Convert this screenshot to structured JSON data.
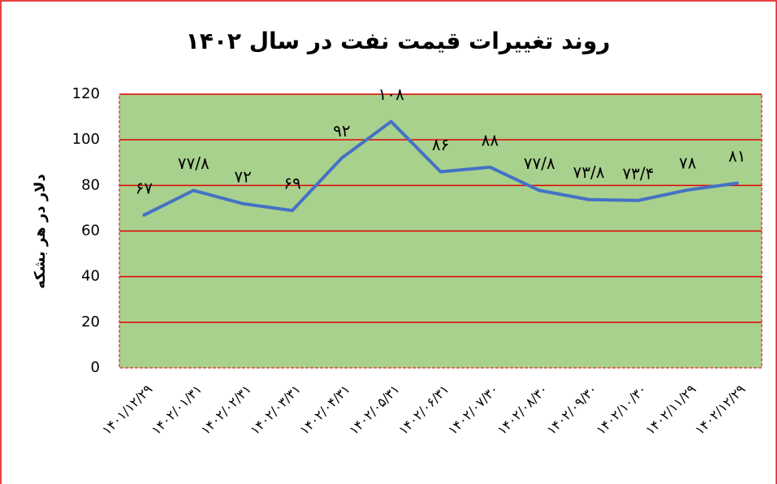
{
  "chart_data": {
    "type": "line",
    "title": "روند تغییرات قیمت نفت در سال ۱۴۰۲",
    "y_label": "دلار در هر بشکه",
    "categories": [
      "۱۴۰۱/۱۲/۲۹",
      "۱۴۰۲/۰۱/۳۱",
      "۱۴۰۲/۰۲/۳۱",
      "۱۴۰۲/۰۳/۳۱",
      "۱۴۰۲/۰۴/۳۱",
      "۱۴۰۲/۰۵/۳۱",
      "۱۴۰۲/۰۶/۳۱",
      "۱۴۰۲/۰۷/۳۰",
      "۱۴۰۲/۰۸/۳۰",
      "۱۴۰۲/۰۹/۳۰",
      "۱۴۰۲/۱۰/۳۰",
      "۱۴۰۲/۱۱/۲۹",
      "۱۴۰۲/۱۲/۲۹"
    ],
    "values": [
      67,
      77.8,
      72,
      69,
      92,
      108,
      86,
      88,
      77.8,
      73.8,
      73.4,
      78,
      81
    ],
    "value_labels": [
      "۶۷",
      "۷۷/۸",
      "۷۲",
      "۶۹",
      "۹۲",
      "۱۰۸",
      "۸۶",
      "۸۸",
      "۷۷/۸",
      "۷۳/۸",
      "۷۳/۴",
      "۷۸",
      "۸۱"
    ],
    "color": "#4472c4",
    "ylim": [
      0,
      120
    ],
    "yticks": [
      0,
      20,
      40,
      60,
      80,
      100,
      120
    ],
    "grid": true
  }
}
